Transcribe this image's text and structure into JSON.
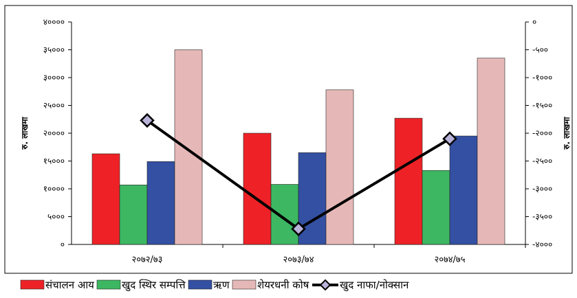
{
  "chart_data": {
    "type": "bar",
    "categories": [
      "२०७२/७३",
      "२०७३/७४",
      "२०७४/७५"
    ],
    "series": [
      {
        "name": "संचालन आय",
        "axis": "left",
        "color": "#ee2226",
        "values": [
          16300,
          20000,
          22700
        ]
      },
      {
        "name": "खुद स्थिर सम्पत्ति",
        "axis": "left",
        "color": "#3db762",
        "values": [
          10700,
          10800,
          13300
        ]
      },
      {
        "name": "ऋण",
        "axis": "left",
        "color": "#3450a3",
        "values": [
          14900,
          16500,
          19500
        ]
      },
      {
        "name": "शेयरधनी कोष",
        "axis": "left",
        "color": "#e5b8b7",
        "values": [
          35000,
          27800,
          33500
        ]
      }
    ],
    "line_series": {
      "name": "खुद नाफा/नोक्सान",
      "axis": "right",
      "color": "#000000",
      "marker_color": "#b9b3d9",
      "values": [
        -1770,
        -3720,
        -2100
      ]
    },
    "left_axis": {
      "label": "रु. लाखमा",
      "ylim": [
        0,
        40000
      ],
      "ticks": [
        0,
        5000,
        10000,
        15000,
        20000,
        25000,
        30000,
        35000,
        40000
      ],
      "tick_labels": [
        "०",
        "५०००",
        "१००००",
        "१५०००",
        "२००००",
        "२५०००",
        "३००००",
        "३५०००",
        "४००००"
      ]
    },
    "right_axis": {
      "label": "रु. लाखमा",
      "ylim": [
        -4000,
        0
      ],
      "ticks": [
        0,
        -500,
        -1000,
        -1500,
        -2000,
        -2500,
        -3000,
        -3500,
        -4000
      ],
      "tick_labels": [
        "०",
        "-५००",
        "-१०००",
        "-१५००",
        "-२०००",
        "-२५००",
        "-३०००",
        "-३५००",
        "-४०००"
      ]
    },
    "grid": false,
    "legend_position": "bottom"
  }
}
